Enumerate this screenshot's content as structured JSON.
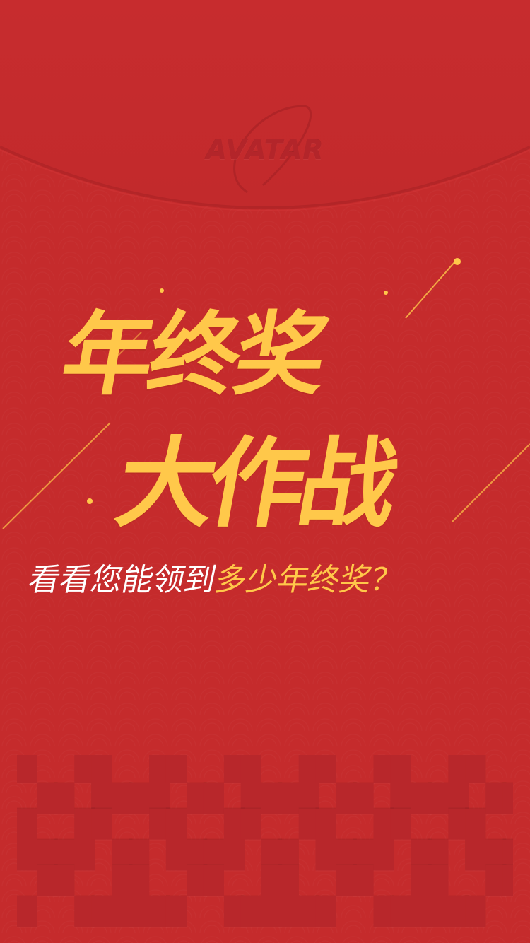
{
  "brand": {
    "logo_text": "AVATAR"
  },
  "headline": {
    "line1": "年终奖",
    "line2": "大作战"
  },
  "subtitle": {
    "part_white": "看看您能领到",
    "part_gold": "多少年终奖？"
  },
  "colors": {
    "background": "#c52b2c",
    "flap_edge": "#a82024",
    "title_gold": "#ffc84a",
    "subtitle_white": "#ffffff"
  },
  "icons": {
    "logo": "avatar-logo-icon",
    "decoration": "sparkle-line-decoration"
  }
}
